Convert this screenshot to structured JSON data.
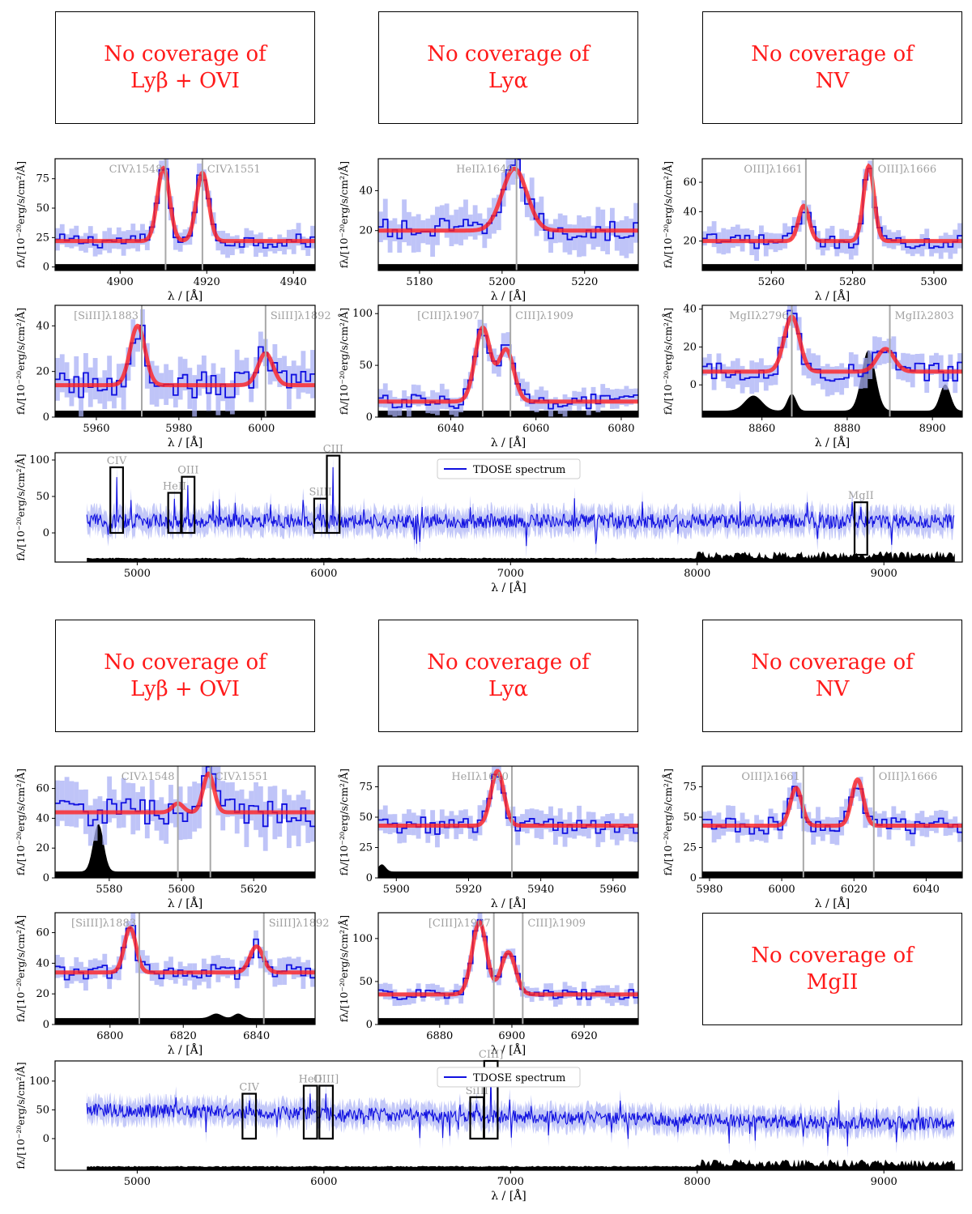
{
  "figure": {
    "ylabel": "fλ/[10⁻²⁰erg/s/cm²/Å]",
    "xlabel": "λ / [Å]",
    "legend": "TDOSE spectrum"
  },
  "no_coverage": [
    {
      "line1": "No coverage of",
      "line2": "Lyβ + OVI"
    },
    {
      "line1": "No coverage of",
      "line2": "Lyα"
    },
    {
      "line1": "No coverage of",
      "line2": "NV"
    },
    {
      "line1": "No coverage of",
      "line2": "Lyβ + OVI"
    },
    {
      "line1": "No coverage of",
      "line2": "Lyα"
    },
    {
      "line1": "No coverage of",
      "line2": "NV"
    },
    {
      "line1": "No coverage of",
      "line2": "MgII"
    }
  ],
  "chart_data": [
    {
      "id": "A1",
      "type": "line",
      "xlim": [
        4885,
        4945
      ],
      "ylim": [
        -3,
        92
      ],
      "xticks": [
        4900,
        4920,
        4940
      ],
      "yticks": [
        0,
        25,
        50,
        75
      ],
      "continuum": 22,
      "noise": 6,
      "peaks": [
        {
          "x": 4910,
          "a": 62,
          "s": 1.4
        },
        {
          "x": 4919,
          "a": 58,
          "s": 1.4
        }
      ],
      "lines": [
        {
          "x": 4910.5,
          "label": "CIVλ1548"
        },
        {
          "x": 4919,
          "label": "CIVλ1551"
        }
      ],
      "sky": []
    },
    {
      "id": "A2",
      "type": "line",
      "xlim": [
        5170,
        5233
      ],
      "ylim": [
        0,
        56
      ],
      "xticks": [
        5180,
        5200,
        5220
      ],
      "yticks": [
        20,
        40
      ],
      "continuum": 20,
      "noise": 6,
      "peaks": [
        {
          "x": 5203,
          "a": 31,
          "s": 3
        }
      ],
      "lines": [
        {
          "x": 5203.5,
          "label": "HeIIλ1640"
        }
      ],
      "sky": []
    },
    {
      "id": "A3",
      "type": "line",
      "xlim": [
        5243,
        5307
      ],
      "ylim": [
        0,
        76
      ],
      "xticks": [
        5260,
        5280,
        5300
      ],
      "yticks": [
        20,
        40,
        60
      ],
      "continuum": 20,
      "noise": 5,
      "peaks": [
        {
          "x": 5268,
          "a": 24,
          "s": 1.3
        },
        {
          "x": 5284,
          "a": 51,
          "s": 1.3
        }
      ],
      "lines": [
        {
          "x": 5268.5,
          "label": "OIII]λ1661"
        },
        {
          "x": 5285,
          "label": "OIII]λ1666"
        }
      ],
      "sky": []
    },
    {
      "id": "A4",
      "type": "line",
      "xlim": [
        5950,
        6013
      ],
      "ylim": [
        0,
        49
      ],
      "xticks": [
        5960,
        5980,
        6000
      ],
      "yticks": [
        0,
        20,
        40
      ],
      "continuum": 14,
      "noise": 6,
      "peaks": [
        {
          "x": 5970,
          "a": 26,
          "s": 1.8
        },
        {
          "x": 6001,
          "a": 14,
          "s": 1.8
        }
      ],
      "lines": [
        {
          "x": 5971,
          "label": "[SiIII]λ1883"
        },
        {
          "x": 6001,
          "label": "SiIII]λ1892"
        }
      ],
      "sky": []
    },
    {
      "id": "A5",
      "type": "line",
      "xlim": [
        6023,
        6084
      ],
      "ylim": [
        0,
        108
      ],
      "xticks": [
        6040,
        6060,
        6080
      ],
      "yticks": [
        0,
        50,
        100
      ],
      "continuum": 15,
      "noise": 7,
      "peaks": [
        {
          "x": 6047.5,
          "a": 71,
          "s": 1.8
        },
        {
          "x": 6053,
          "a": 50,
          "s": 1.8
        }
      ],
      "lines": [
        {
          "x": 6047.5,
          "label": "[CIII]λ1907"
        },
        {
          "x": 6054,
          "label": "CIII]λ1909"
        }
      ],
      "sky": []
    },
    {
      "id": "A6",
      "type": "line",
      "xlim": [
        8846,
        8907
      ],
      "ylim": [
        -17,
        42
      ],
      "xticks": [
        8860,
        8880,
        8900
      ],
      "yticks": [
        0,
        20,
        40
      ],
      "continuum": 7,
      "noise": 5,
      "peaks": [
        {
          "x": 8867,
          "a": 29,
          "s": 1.8
        },
        {
          "x": 8889,
          "a": 12,
          "s": 2
        }
      ],
      "lines": [
        {
          "x": 8867,
          "label": "MgIIλ2796"
        },
        {
          "x": 8890,
          "label": "MgIIλ2803"
        }
      ],
      "sky": [
        {
          "x": 8858,
          "a": 8,
          "s": 2
        },
        {
          "x": 8867,
          "a": 9,
          "s": 1
        },
        {
          "x": 8885,
          "a": 32,
          "s": 1.6
        },
        {
          "x": 8903,
          "a": 14,
          "s": 1.2
        }
      ]
    },
    {
      "id": "B1",
      "type": "line",
      "xlim": [
        5565,
        5637
      ],
      "ylim": [
        0,
        75
      ],
      "xticks": [
        5580,
        5600,
        5620
      ],
      "yticks": [
        0,
        20,
        40,
        60
      ],
      "continuum": 44,
      "noise": 10,
      "peaks": [
        {
          "x": 5599,
          "a": 6,
          "s": 1.5
        },
        {
          "x": 5607.5,
          "a": 26,
          "s": 1.5
        }
      ],
      "lines": [
        {
          "x": 5599,
          "label": "CIVλ1548"
        },
        {
          "x": 5608,
          "label": "CIVλ1551"
        }
      ],
      "sky": [
        {
          "x": 5577,
          "a": 32,
          "s": 1.4
        }
      ]
    },
    {
      "id": "B2",
      "type": "line",
      "xlim": [
        5895,
        5967
      ],
      "ylim": [
        0,
        92
      ],
      "xticks": [
        5900,
        5920,
        5940,
        5960
      ],
      "yticks": [
        0,
        25,
        50,
        75
      ],
      "continuum": 43,
      "noise": 7,
      "peaks": [
        {
          "x": 5928,
          "a": 45,
          "s": 1.8
        }
      ],
      "lines": [
        {
          "x": 5932,
          "label": "HeIIλ1640"
        }
      ],
      "sky": [
        {
          "x": 5896,
          "a": 6,
          "s": 1
        }
      ]
    },
    {
      "id": "B3",
      "type": "line",
      "xlim": [
        5978,
        6050
      ],
      "ylim": [
        0,
        92
      ],
      "xticks": [
        5980,
        6000,
        6020,
        6040
      ],
      "yticks": [
        0,
        25,
        50,
        75
      ],
      "continuum": 43,
      "noise": 7,
      "peaks": [
        {
          "x": 6004,
          "a": 31,
          "s": 1.6
        },
        {
          "x": 6021,
          "a": 38,
          "s": 1.6
        }
      ],
      "lines": [
        {
          "x": 6006,
          "label": "OIII]λ1661"
        },
        {
          "x": 6025.5,
          "label": "OIII]λ1666"
        }
      ],
      "sky": []
    },
    {
      "id": "B4",
      "type": "line",
      "xlim": [
        6785,
        6856
      ],
      "ylim": [
        0,
        73
      ],
      "xticks": [
        6800,
        6820,
        6840
      ],
      "yticks": [
        0,
        20,
        40,
        60
      ],
      "continuum": 34,
      "noise": 5,
      "peaks": [
        {
          "x": 6805.5,
          "a": 29,
          "s": 1.6
        },
        {
          "x": 6840,
          "a": 17,
          "s": 1.8
        }
      ],
      "lines": [
        {
          "x": 6808,
          "label": "[SiIII]λ1883"
        },
        {
          "x": 6842,
          "label": "SiIII]λ1892"
        }
      ],
      "sky": [
        {
          "x": 6829,
          "a": 3,
          "s": 1.5
        },
        {
          "x": 6835,
          "a": 3,
          "s": 1.2
        }
      ]
    },
    {
      "id": "B5",
      "type": "line",
      "xlim": [
        6863,
        6935
      ],
      "ylim": [
        0,
        130
      ],
      "xticks": [
        6880,
        6900,
        6920
      ],
      "yticks": [
        0,
        50,
        100
      ],
      "continuum": 35,
      "noise": 6,
      "peaks": [
        {
          "x": 6891,
          "a": 84,
          "s": 2
        },
        {
          "x": 6899,
          "a": 49,
          "s": 2
        }
      ],
      "lines": [
        {
          "x": 6895,
          "label": "[CIII]λ1907"
        },
        {
          "x": 6903,
          "label": "CIII]λ1909"
        }
      ],
      "sky": []
    },
    {
      "id": "A7",
      "type": "line",
      "xlim": [
        4560,
        9420
      ],
      "ylim": [
        -40,
        110
      ],
      "xticks": [
        5000,
        6000,
        7000,
        8000,
        9000
      ],
      "xticklabels": [
        "5000",
        "6000",
        "7000",
        "8000",
        "9000"
      ],
      "yticks": [
        0,
        50,
        100
      ],
      "continuum": 16,
      "noise": 10,
      "start": 4730,
      "end": 9380,
      "boxes": [
        {
          "x": 4890,
          "label": "CIV",
          "top": 90,
          "bottom": 0
        },
        {
          "x": 5200,
          "label": "HeII",
          "top": 55,
          "bottom": 0
        },
        {
          "x": 5273,
          "label": "OIII",
          "top": 77,
          "bottom": 0
        },
        {
          "x": 5982,
          "label": "SiIII",
          "top": 47,
          "bottom": 0
        },
        {
          "x": 6050,
          "label": "CIII",
          "top": 106,
          "bottom": 0
        },
        {
          "x": 8877,
          "label": "MgII",
          "top": 42,
          "bottom": -30
        }
      ]
    },
    {
      "id": "B7",
      "type": "line",
      "xlim": [
        4560,
        9420
      ],
      "ylim": [
        -55,
        135
      ],
      "xticks": [
        5000,
        6000,
        7000,
        8000,
        9000
      ],
      "xticklabels": [
        "5000",
        "6000",
        "7000",
        "8000",
        "9000"
      ],
      "yticks": [
        0,
        50,
        100
      ],
      "continuum": 50,
      "noise": 12,
      "start": 4730,
      "end": 9380,
      "boxes": [
        {
          "x": 5600,
          "label": "CIV",
          "top": 78,
          "bottom": 0
        },
        {
          "x": 5928,
          "label": "HeII",
          "top": 92,
          "bottom": 0
        },
        {
          "x": 6012,
          "label": "OIII]",
          "top": 92,
          "bottom": 0
        },
        {
          "x": 6820,
          "label": "SiIII",
          "top": 72,
          "bottom": 0
        },
        {
          "x": 6895,
          "label": "CIII]",
          "top": 135,
          "bottom": 0
        }
      ]
    }
  ]
}
